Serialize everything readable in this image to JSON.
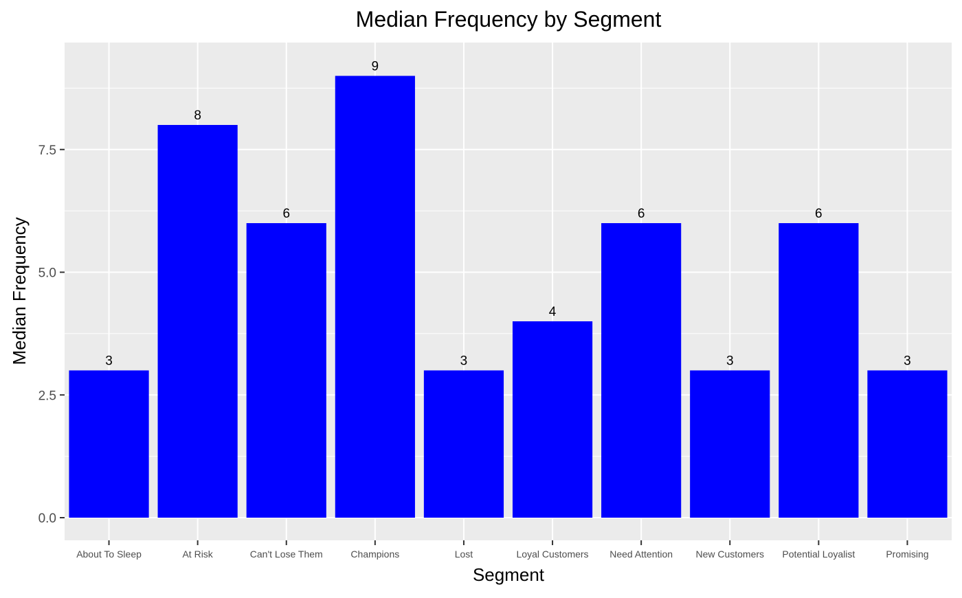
{
  "chart_data": {
    "type": "bar",
    "title": "Median Frequency  by Segment",
    "xlabel": "Segment",
    "ylabel": "Median Frequency",
    "categories": [
      "About To Sleep",
      "At Risk",
      "Can't Lose Them",
      "Champions",
      "Lost",
      "Loyal Customers",
      "Need Attention",
      "New Customers",
      "Potential Loyalist",
      "Promising"
    ],
    "values": [
      3,
      8,
      6,
      9,
      3,
      4,
      6,
      3,
      6,
      3
    ],
    "data_labels": [
      "3",
      "8",
      "6",
      "9",
      "3",
      "4",
      "6",
      "3",
      "6",
      "3"
    ],
    "ylim": [
      0,
      9.7
    ],
    "y_ticks": [
      0,
      2.5,
      5,
      7.5
    ],
    "y_tick_labels": [
      "0.0",
      "2.5",
      "5.0",
      "7.5"
    ],
    "y_minor_gridlines": [
      1.25,
      3.75,
      6.25,
      8.75
    ],
    "grid": true,
    "legend": "none",
    "colors": {
      "bar": "#0000ff",
      "panel_background": "#ebebeb",
      "grid": "#ffffff",
      "tick_text": "#4d4d4d",
      "text": "#000000"
    }
  }
}
